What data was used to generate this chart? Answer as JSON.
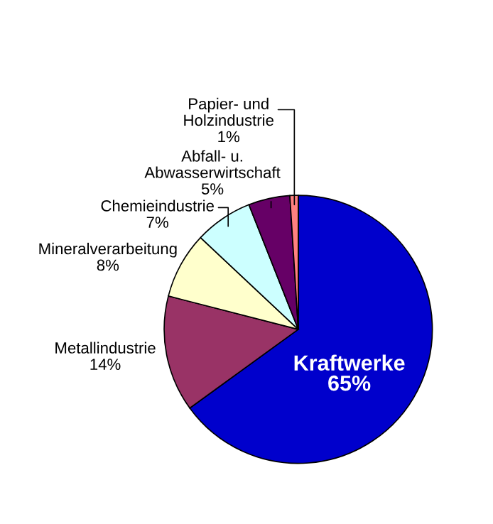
{
  "chart_data": {
    "type": "pie",
    "categories": [
      "Kraftwerke",
      "Metallindustrie",
      "Mineralverarbeitung",
      "Chemieindustrie",
      "Abfall- u.\nAbwasserwirtschaft",
      "Papier- und\nHolzindustrie"
    ],
    "values": [
      65,
      14,
      8,
      7,
      5,
      1
    ],
    "colors": [
      "#0000cc",
      "#993366",
      "#ffffcc",
      "#ccffff",
      "#660066",
      "#ff8080"
    ],
    "value_labels": [
      "65%",
      "14%",
      "8%",
      "7%",
      "5%",
      "1%"
    ]
  }
}
